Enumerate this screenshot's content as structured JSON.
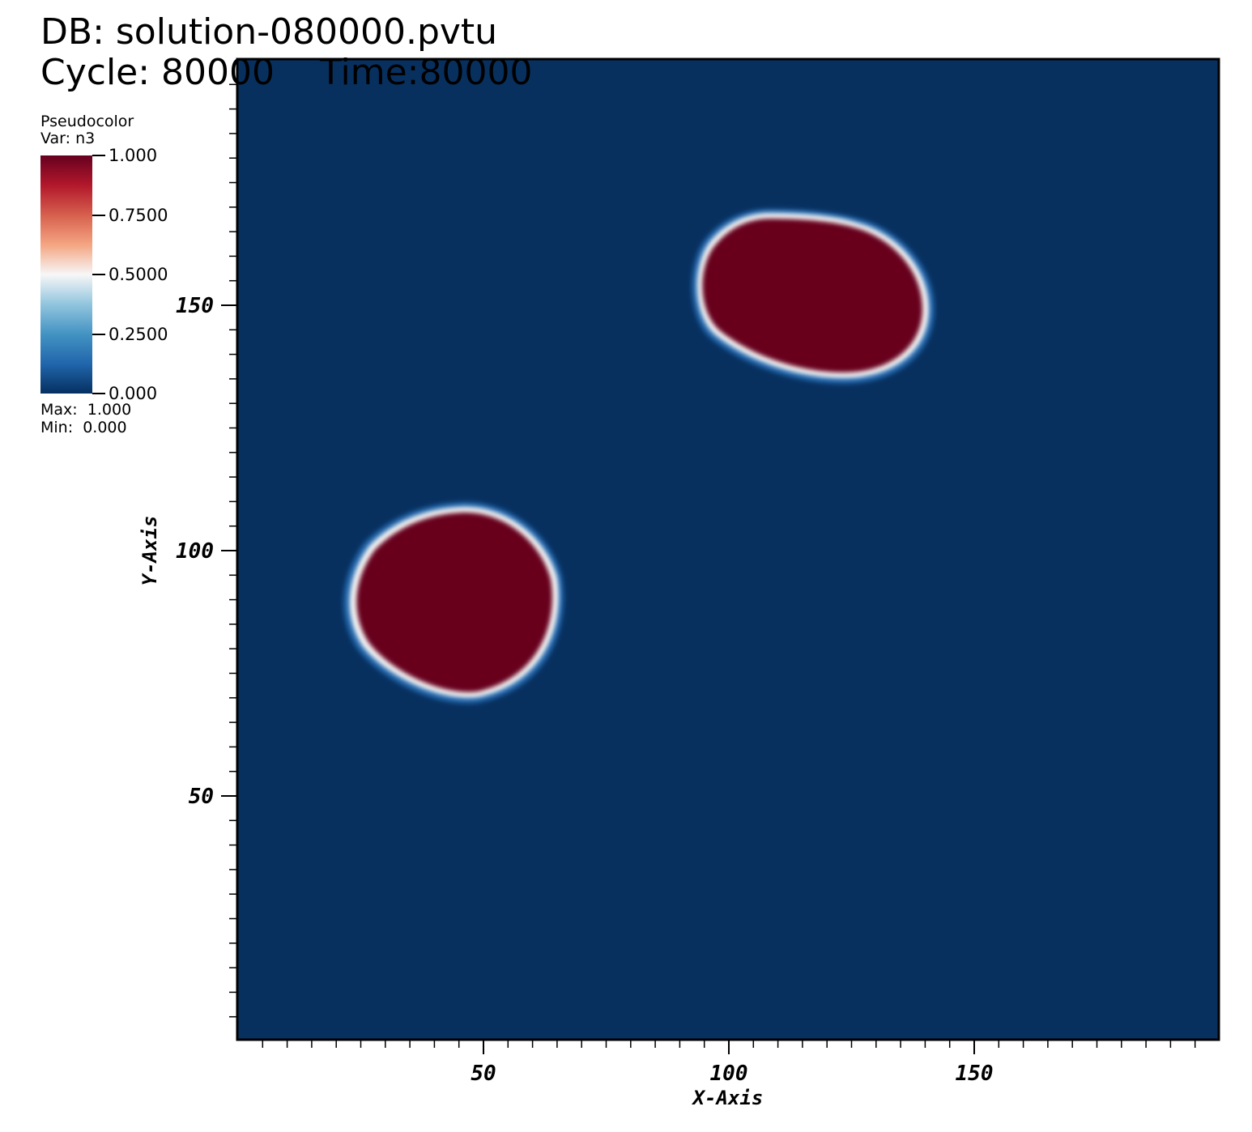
{
  "header": {
    "db": "DB: solution-080000.pvtu",
    "cycle": "Cycle: 80000    Time:80000"
  },
  "legend": {
    "plot_type": "Pseudocolor",
    "var": "Var: n3",
    "ticks": [
      "1.000",
      "0.7500",
      "0.5000",
      "0.2500",
      "0.000"
    ],
    "max": "Max:  1.000",
    "min": "Min:  0.000",
    "colormap": [
      "#67001f",
      "#b2182b",
      "#d6604d",
      "#f4a582",
      "#f7f7f7",
      "#92c5de",
      "#4393c3",
      "#2166ac",
      "#053061"
    ]
  },
  "axes": {
    "x_title": "X-Axis",
    "y_title": "Y-Axis",
    "x_ticks": [
      "50",
      "100",
      "150"
    ],
    "y_ticks": [
      "150",
      "100",
      "50"
    ],
    "background_color": "#08305f",
    "field_color": "#67001f"
  }
}
